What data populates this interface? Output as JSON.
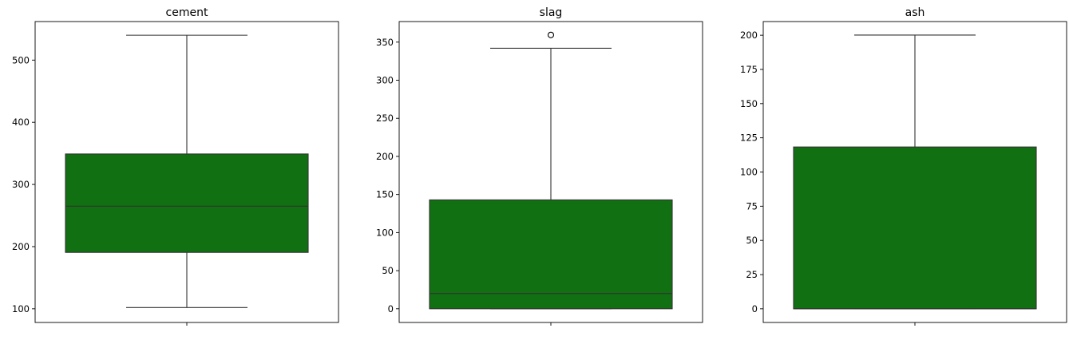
{
  "chart_data": [
    {
      "type": "box",
      "title": "cement",
      "xlabel": "",
      "ylabel": "",
      "ylim": [
        78,
        562
      ],
      "yticks": [
        100,
        200,
        300,
        400,
        500
      ],
      "box": {
        "whisker_low": 102,
        "q1": 190.7,
        "median": 265,
        "q3": 349,
        "whisker_high": 540
      },
      "outliers": [],
      "color": "#117011",
      "grid": false
    },
    {
      "type": "box",
      "title": "slag",
      "xlabel": "",
      "ylabel": "",
      "ylim": [
        -18,
        377
      ],
      "yticks": [
        0,
        50,
        100,
        150,
        200,
        250,
        300,
        350
      ],
      "box": {
        "whisker_low": 0,
        "q1": 0,
        "median": 20,
        "q3": 142.9,
        "whisker_high": 342
      },
      "outliers": [
        359.4
      ],
      "color": "#117011",
      "grid": false
    },
    {
      "type": "box",
      "title": "ash",
      "xlabel": "",
      "ylabel": "",
      "ylim": [
        -10,
        210
      ],
      "yticks": [
        0,
        25,
        50,
        75,
        100,
        125,
        150,
        175,
        200
      ],
      "box": {
        "whisker_low": 0,
        "q1": 0,
        "median": 0,
        "q3": 118.3,
        "whisker_high": 200.1
      },
      "outliers": [],
      "color": "#117011",
      "grid": false
    }
  ]
}
